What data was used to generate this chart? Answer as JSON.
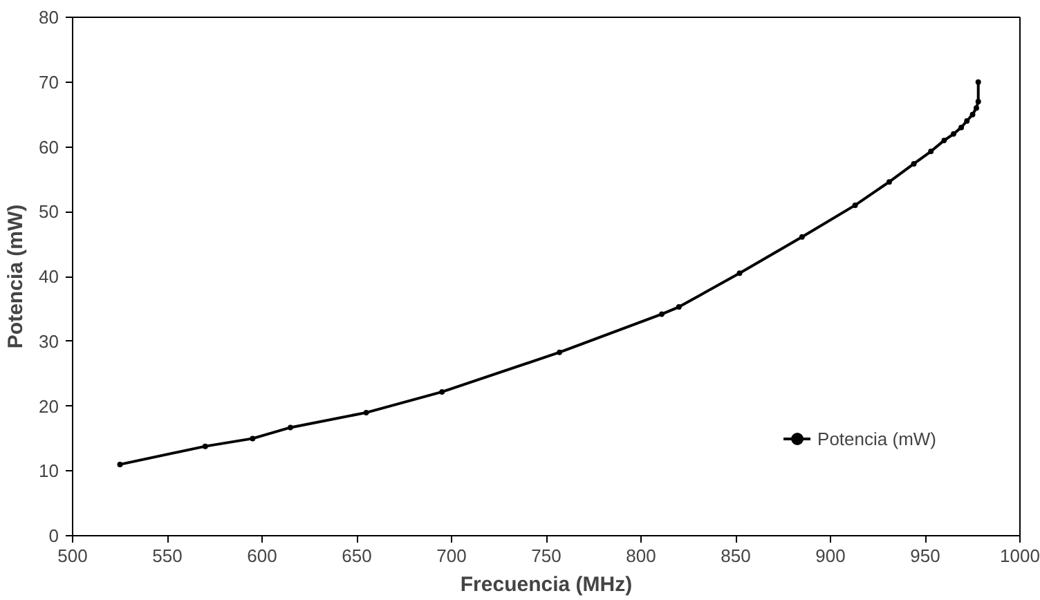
{
  "chart_data": {
    "type": "line",
    "xlabel": "Frecuencia (MHz)",
    "ylabel": "Potencia (mW)",
    "x": [
      525,
      570,
      595,
      615,
      655,
      695,
      757,
      811,
      820,
      852,
      885,
      913,
      931,
      944,
      953,
      960,
      965,
      969,
      972,
      975,
      977,
      978,
      978
    ],
    "series": [
      {
        "name": "Potencia (mW)",
        "color": "#000000",
        "values": [
          11,
          13.8,
          15,
          16.7,
          19,
          22.2,
          28.3,
          34.2,
          35.3,
          40.5,
          46.1,
          51,
          54.6,
          57.4,
          59.3,
          61,
          62,
          63,
          64,
          65,
          66,
          67,
          70
        ]
      }
    ],
    "xlim": [
      500,
      1000
    ],
    "xticks": [
      500,
      550,
      600,
      650,
      700,
      750,
      800,
      850,
      900,
      950,
      1000
    ],
    "ylim": [
      0,
      80
    ],
    "yticks": [
      0,
      10,
      20,
      30,
      40,
      50,
      60,
      70,
      80
    ],
    "grid": false,
    "legend": "bottom right",
    "marker": "circle",
    "line_style": "solid"
  }
}
